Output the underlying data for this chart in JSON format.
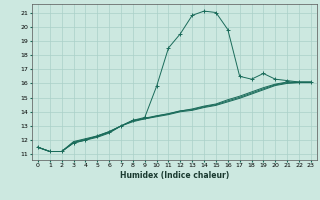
{
  "title": "",
  "xlabel": "Humidex (Indice chaleur)",
  "ylabel": "",
  "background_color": "#cce8e0",
  "grid_color": "#aad0c8",
  "line_color": "#1a6b5a",
  "xlim": [
    -0.5,
    23.5
  ],
  "ylim": [
    10.6,
    21.6
  ],
  "xticks": [
    0,
    1,
    2,
    3,
    4,
    5,
    6,
    7,
    8,
    9,
    10,
    11,
    12,
    13,
    14,
    15,
    16,
    17,
    18,
    19,
    20,
    21,
    22,
    23
  ],
  "yticks": [
    11,
    12,
    13,
    14,
    15,
    16,
    17,
    18,
    19,
    20,
    21
  ],
  "line1_x": [
    0,
    1,
    2,
    3,
    4,
    5,
    6,
    7,
    8,
    9,
    10,
    11,
    12,
    13,
    14,
    15,
    16,
    17,
    18,
    19,
    20,
    21,
    22,
    23
  ],
  "line1_y": [
    11.5,
    11.2,
    11.2,
    11.8,
    12.0,
    12.3,
    12.6,
    13.0,
    13.4,
    13.6,
    15.8,
    18.5,
    19.5,
    20.8,
    21.1,
    21.0,
    19.8,
    16.5,
    16.3,
    16.7,
    16.3,
    16.2,
    16.1,
    16.1
  ],
  "line2_x": [
    0,
    1,
    2,
    3,
    4,
    5,
    6,
    7,
    8,
    9,
    10,
    11,
    12,
    13,
    14,
    15,
    16,
    17,
    18,
    19,
    20,
    21,
    22,
    23
  ],
  "line2_y": [
    11.5,
    11.2,
    11.2,
    11.9,
    12.1,
    12.3,
    12.6,
    13.0,
    13.4,
    13.5,
    13.7,
    13.85,
    14.05,
    14.2,
    14.4,
    14.55,
    14.85,
    15.1,
    15.4,
    15.7,
    15.95,
    16.1,
    16.1,
    16.1
  ],
  "line3_x": [
    0,
    1,
    2,
    3,
    4,
    5,
    6,
    7,
    8,
    9,
    10,
    11,
    12,
    13,
    14,
    15,
    16,
    17,
    18,
    19,
    20,
    21,
    22,
    23
  ],
  "line3_y": [
    11.5,
    11.2,
    11.2,
    11.8,
    12.0,
    12.2,
    12.5,
    13.0,
    13.3,
    13.5,
    13.65,
    13.8,
    14.0,
    14.1,
    14.3,
    14.45,
    14.7,
    14.95,
    15.25,
    15.55,
    15.85,
    16.0,
    16.05,
    16.05
  ],
  "line4_x": [
    0,
    1,
    2,
    3,
    4,
    5,
    6,
    7,
    8,
    9,
    10,
    11,
    12,
    13,
    14,
    15,
    16,
    17,
    18,
    19,
    20,
    21,
    22,
    23
  ],
  "line4_y": [
    11.5,
    11.2,
    11.2,
    11.85,
    12.05,
    12.25,
    12.55,
    13.0,
    13.35,
    13.55,
    13.72,
    13.87,
    14.07,
    14.15,
    14.35,
    14.5,
    14.77,
    15.02,
    15.32,
    15.62,
    15.9,
    16.05,
    16.07,
    16.07
  ]
}
